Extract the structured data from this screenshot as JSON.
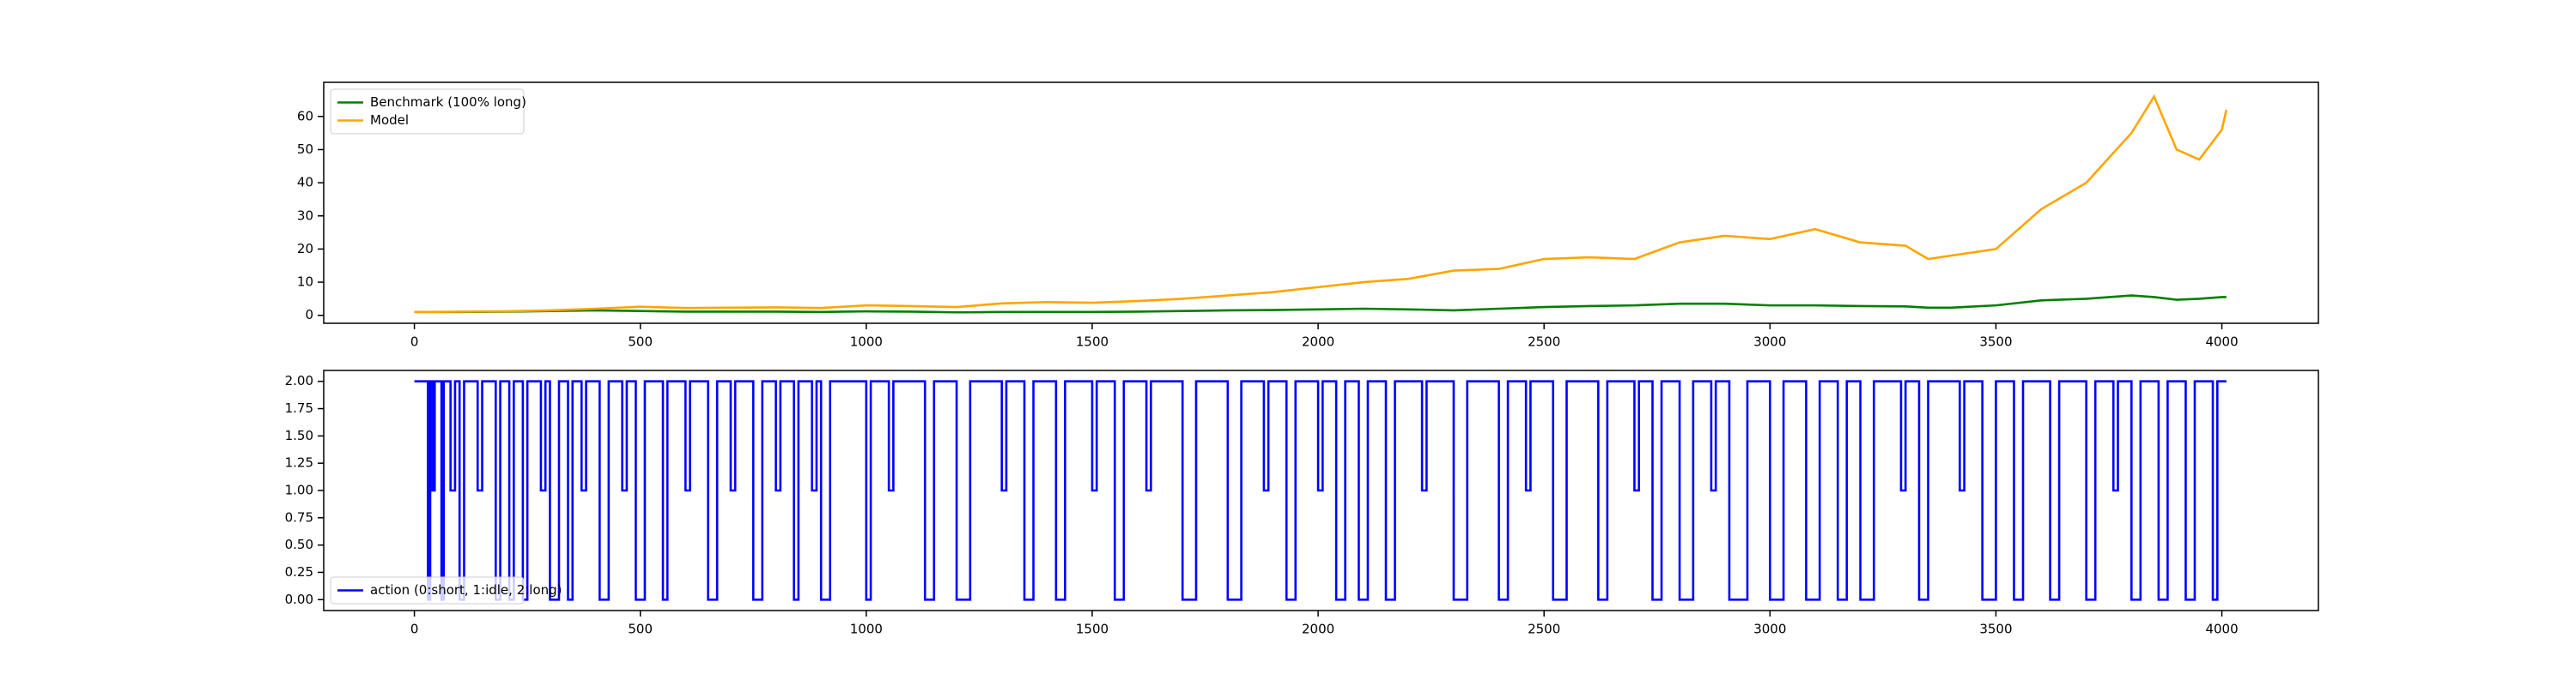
{
  "chart_data": [
    {
      "type": "line",
      "x": [
        0,
        100,
        200,
        300,
        400,
        500,
        600,
        700,
        800,
        900,
        1000,
        1100,
        1200,
        1300,
        1400,
        1500,
        1600,
        1700,
        1800,
        1900,
        2000,
        2100,
        2200,
        2300,
        2400,
        2500,
        2600,
        2700,
        2800,
        2900,
        3000,
        3100,
        3200,
        3300,
        3350,
        3400,
        3500,
        3600,
        3700,
        3800,
        3850,
        3900,
        3950,
        4000,
        4010
      ],
      "series": [
        {
          "name": "Benchmark (100% long)",
          "color": "#008000",
          "values": [
            1,
            1,
            1.1,
            1.3,
            1.5,
            1.3,
            1.1,
            1.1,
            1.1,
            1,
            1.2,
            1.1,
            0.9,
            1,
            1,
            1,
            1.1,
            1.3,
            1.5,
            1.6,
            1.8,
            2,
            1.8,
            1.5,
            2,
            2.5,
            2.8,
            3,
            3.5,
            3.5,
            3,
            3,
            2.8,
            2.7,
            2.3,
            2.3,
            3,
            4.5,
            5,
            6,
            5.5,
            4.7,
            5,
            5.5,
            5.5
          ]
        },
        {
          "name": "Model",
          "color": "#ffa500",
          "values": [
            1,
            1.1,
            1.2,
            1.5,
            2,
            2.6,
            2.2,
            2.3,
            2.4,
            2.2,
            3,
            2.8,
            2.5,
            3.6,
            4,
            3.8,
            4.3,
            5,
            6,
            7,
            8.5,
            10,
            11,
            13.5,
            14,
            17,
            17.5,
            17,
            22,
            24,
            23,
            26,
            22,
            21,
            17,
            18,
            20,
            32,
            40,
            55,
            66,
            50,
            47,
            56,
            62
          ]
        }
      ],
      "xlim": [
        -200.65,
        4213.65
      ],
      "ylim": [
        -2.4,
        70.3
      ],
      "xticks": [
        0,
        500,
        1000,
        1500,
        2000,
        2500,
        3000,
        3500,
        4000
      ],
      "yticks": [
        0,
        10,
        20,
        30,
        40,
        50,
        60
      ],
      "legend": "upper left"
    },
    {
      "type": "line",
      "drawstyle": "steps-post",
      "x": [
        0,
        30,
        35,
        40,
        45,
        60,
        65,
        80,
        90,
        100,
        110,
        140,
        150,
        180,
        190,
        210,
        220,
        240,
        250,
        280,
        290,
        300,
        320,
        340,
        350,
        370,
        380,
        410,
        430,
        460,
        470,
        490,
        510,
        550,
        560,
        600,
        610,
        650,
        670,
        700,
        710,
        750,
        770,
        800,
        810,
        840,
        850,
        880,
        890,
        900,
        920,
        1000,
        1010,
        1050,
        1060,
        1130,
        1150,
        1200,
        1230,
        1300,
        1310,
        1350,
        1370,
        1420,
        1440,
        1500,
        1510,
        1550,
        1570,
        1620,
        1630,
        1700,
        1730,
        1800,
        1830,
        1880,
        1890,
        1930,
        1950,
        2000,
        2010,
        2040,
        2060,
        2090,
        2110,
        2150,
        2170,
        2230,
        2240,
        2300,
        2330,
        2400,
        2420,
        2460,
        2470,
        2520,
        2550,
        2620,
        2640,
        2700,
        2710,
        2740,
        2760,
        2800,
        2830,
        2870,
        2880,
        2910,
        2950,
        3000,
        3030,
        3080,
        3110,
        3150,
        3170,
        3200,
        3230,
        3290,
        3300,
        3330,
        3350,
        3420,
        3430,
        3470,
        3500,
        3540,
        3560,
        3620,
        3640,
        3700,
        3720,
        3760,
        3770,
        3800,
        3820,
        3860,
        3880,
        3920,
        3940,
        3980,
        3990,
        4010
      ],
      "series": [
        {
          "name": "action (0:short, 1:idle, 2:long)",
          "color": "#0000ff",
          "values": [
            2,
            0,
            2,
            1,
            2,
            0,
            2,
            1,
            2,
            0,
            2,
            1,
            2,
            0,
            2,
            0,
            2,
            0,
            2,
            1,
            2,
            0,
            2,
            0,
            2,
            1,
            2,
            0,
            2,
            1,
            2,
            0,
            2,
            0,
            2,
            1,
            2,
            0,
            2,
            1,
            2,
            0,
            2,
            1,
            2,
            0,
            2,
            1,
            2,
            0,
            2,
            0,
            2,
            1,
            2,
            0,
            2,
            0,
            2,
            1,
            2,
            0,
            2,
            0,
            2,
            1,
            2,
            0,
            2,
            1,
            2,
            0,
            2,
            0,
            2,
            1,
            2,
            0,
            2,
            1,
            2,
            0,
            2,
            0,
            2,
            0,
            2,
            1,
            2,
            0,
            2,
            0,
            2,
            1,
            2,
            0,
            2,
            0,
            2,
            1,
            2,
            0,
            2,
            0,
            2,
            1,
            2,
            0,
            2,
            0,
            2,
            0,
            2,
            0,
            2,
            0,
            2,
            1,
            2,
            0,
            2,
            1,
            2,
            0,
            2,
            0,
            2,
            0,
            2,
            0,
            2,
            1,
            2,
            0,
            2,
            0,
            2,
            0,
            2,
            0,
            2,
            2
          ]
        }
      ],
      "xlim": [
        -200.65,
        4213.65
      ],
      "ylim": [
        -0.1,
        2.1
      ],
      "xticks": [
        0,
        500,
        1000,
        1500,
        2000,
        2500,
        3000,
        3500,
        4000
      ],
      "yticks": [
        {
          "value": 0,
          "label": "0.00"
        },
        {
          "value": 0.25,
          "label": "0.25"
        },
        {
          "value": 0.5,
          "label": "0.50"
        },
        {
          "value": 0.75,
          "label": "0.75"
        },
        {
          "value": 1,
          "label": "1.00"
        },
        {
          "value": 1.25,
          "label": "1.25"
        },
        {
          "value": 1.5,
          "label": "1.50"
        },
        {
          "value": 1.75,
          "label": "1.75"
        },
        {
          "value": 2,
          "label": "2.00"
        }
      ],
      "legend": "lower left"
    }
  ]
}
